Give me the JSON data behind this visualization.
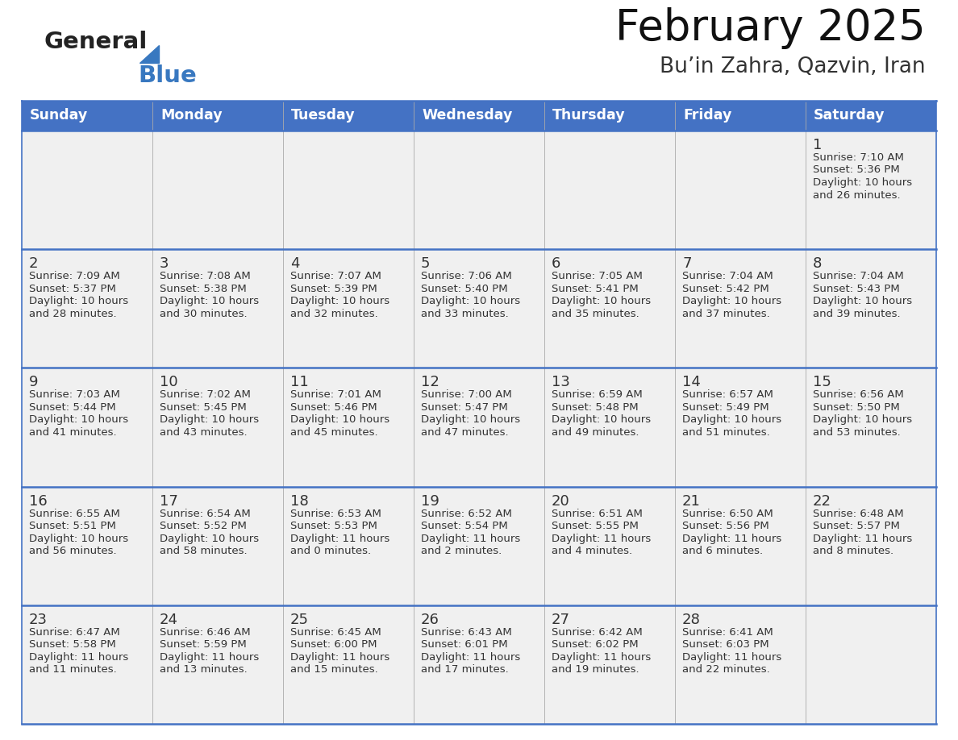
{
  "title": "February 2025",
  "subtitle": "Bu’in Zahra, Qazvin, Iran",
  "header_bg": "#4472C4",
  "header_text": "#FFFFFF",
  "row_bg": "#F0F0F0",
  "cell_text": "#333333",
  "border_color": "#4472C4",
  "thin_line_color": "#AAAAAA",
  "days_of_week": [
    "Sunday",
    "Monday",
    "Tuesday",
    "Wednesday",
    "Thursday",
    "Friday",
    "Saturday"
  ],
  "calendar_data": [
    [
      null,
      null,
      null,
      null,
      null,
      null,
      {
        "day": "1",
        "sunrise": "7:10 AM",
        "sunset": "5:36 PM",
        "daylight_h": "10 hours",
        "daylight_m": "and 26 minutes."
      }
    ],
    [
      {
        "day": "2",
        "sunrise": "7:09 AM",
        "sunset": "5:37 PM",
        "daylight_h": "10 hours",
        "daylight_m": "and 28 minutes."
      },
      {
        "day": "3",
        "sunrise": "7:08 AM",
        "sunset": "5:38 PM",
        "daylight_h": "10 hours",
        "daylight_m": "and 30 minutes."
      },
      {
        "day": "4",
        "sunrise": "7:07 AM",
        "sunset": "5:39 PM",
        "daylight_h": "10 hours",
        "daylight_m": "and 32 minutes."
      },
      {
        "day": "5",
        "sunrise": "7:06 AM",
        "sunset": "5:40 PM",
        "daylight_h": "10 hours",
        "daylight_m": "and 33 minutes."
      },
      {
        "day": "6",
        "sunrise": "7:05 AM",
        "sunset": "5:41 PM",
        "daylight_h": "10 hours",
        "daylight_m": "and 35 minutes."
      },
      {
        "day": "7",
        "sunrise": "7:04 AM",
        "sunset": "5:42 PM",
        "daylight_h": "10 hours",
        "daylight_m": "and 37 minutes."
      },
      {
        "day": "8",
        "sunrise": "7:04 AM",
        "sunset": "5:43 PM",
        "daylight_h": "10 hours",
        "daylight_m": "and 39 minutes."
      }
    ],
    [
      {
        "day": "9",
        "sunrise": "7:03 AM",
        "sunset": "5:44 PM",
        "daylight_h": "10 hours",
        "daylight_m": "and 41 minutes."
      },
      {
        "day": "10",
        "sunrise": "7:02 AM",
        "sunset": "5:45 PM",
        "daylight_h": "10 hours",
        "daylight_m": "and 43 minutes."
      },
      {
        "day": "11",
        "sunrise": "7:01 AM",
        "sunset": "5:46 PM",
        "daylight_h": "10 hours",
        "daylight_m": "and 45 minutes."
      },
      {
        "day": "12",
        "sunrise": "7:00 AM",
        "sunset": "5:47 PM",
        "daylight_h": "10 hours",
        "daylight_m": "and 47 minutes."
      },
      {
        "day": "13",
        "sunrise": "6:59 AM",
        "sunset": "5:48 PM",
        "daylight_h": "10 hours",
        "daylight_m": "and 49 minutes."
      },
      {
        "day": "14",
        "sunrise": "6:57 AM",
        "sunset": "5:49 PM",
        "daylight_h": "10 hours",
        "daylight_m": "and 51 minutes."
      },
      {
        "day": "15",
        "sunrise": "6:56 AM",
        "sunset": "5:50 PM",
        "daylight_h": "10 hours",
        "daylight_m": "and 53 minutes."
      }
    ],
    [
      {
        "day": "16",
        "sunrise": "6:55 AM",
        "sunset": "5:51 PM",
        "daylight_h": "10 hours",
        "daylight_m": "and 56 minutes."
      },
      {
        "day": "17",
        "sunrise": "6:54 AM",
        "sunset": "5:52 PM",
        "daylight_h": "10 hours",
        "daylight_m": "and 58 minutes."
      },
      {
        "day": "18",
        "sunrise": "6:53 AM",
        "sunset": "5:53 PM",
        "daylight_h": "11 hours",
        "daylight_m": "and 0 minutes."
      },
      {
        "day": "19",
        "sunrise": "6:52 AM",
        "sunset": "5:54 PM",
        "daylight_h": "11 hours",
        "daylight_m": "and 2 minutes."
      },
      {
        "day": "20",
        "sunrise": "6:51 AM",
        "sunset": "5:55 PM",
        "daylight_h": "11 hours",
        "daylight_m": "and 4 minutes."
      },
      {
        "day": "21",
        "sunrise": "6:50 AM",
        "sunset": "5:56 PM",
        "daylight_h": "11 hours",
        "daylight_m": "and 6 minutes."
      },
      {
        "day": "22",
        "sunrise": "6:48 AM",
        "sunset": "5:57 PM",
        "daylight_h": "11 hours",
        "daylight_m": "and 8 minutes."
      }
    ],
    [
      {
        "day": "23",
        "sunrise": "6:47 AM",
        "sunset": "5:58 PM",
        "daylight_h": "11 hours",
        "daylight_m": "and 11 minutes."
      },
      {
        "day": "24",
        "sunrise": "6:46 AM",
        "sunset": "5:59 PM",
        "daylight_h": "11 hours",
        "daylight_m": "and 13 minutes."
      },
      {
        "day": "25",
        "sunrise": "6:45 AM",
        "sunset": "6:00 PM",
        "daylight_h": "11 hours",
        "daylight_m": "and 15 minutes."
      },
      {
        "day": "26",
        "sunrise": "6:43 AM",
        "sunset": "6:01 PM",
        "daylight_h": "11 hours",
        "daylight_m": "and 17 minutes."
      },
      {
        "day": "27",
        "sunrise": "6:42 AM",
        "sunset": "6:02 PM",
        "daylight_h": "11 hours",
        "daylight_m": "and 19 minutes."
      },
      {
        "day": "28",
        "sunrise": "6:41 AM",
        "sunset": "6:03 PM",
        "daylight_h": "11 hours",
        "daylight_m": "and 22 minutes."
      },
      null
    ]
  ],
  "figsize": [
    11.88,
    9.18
  ],
  "dpi": 100
}
